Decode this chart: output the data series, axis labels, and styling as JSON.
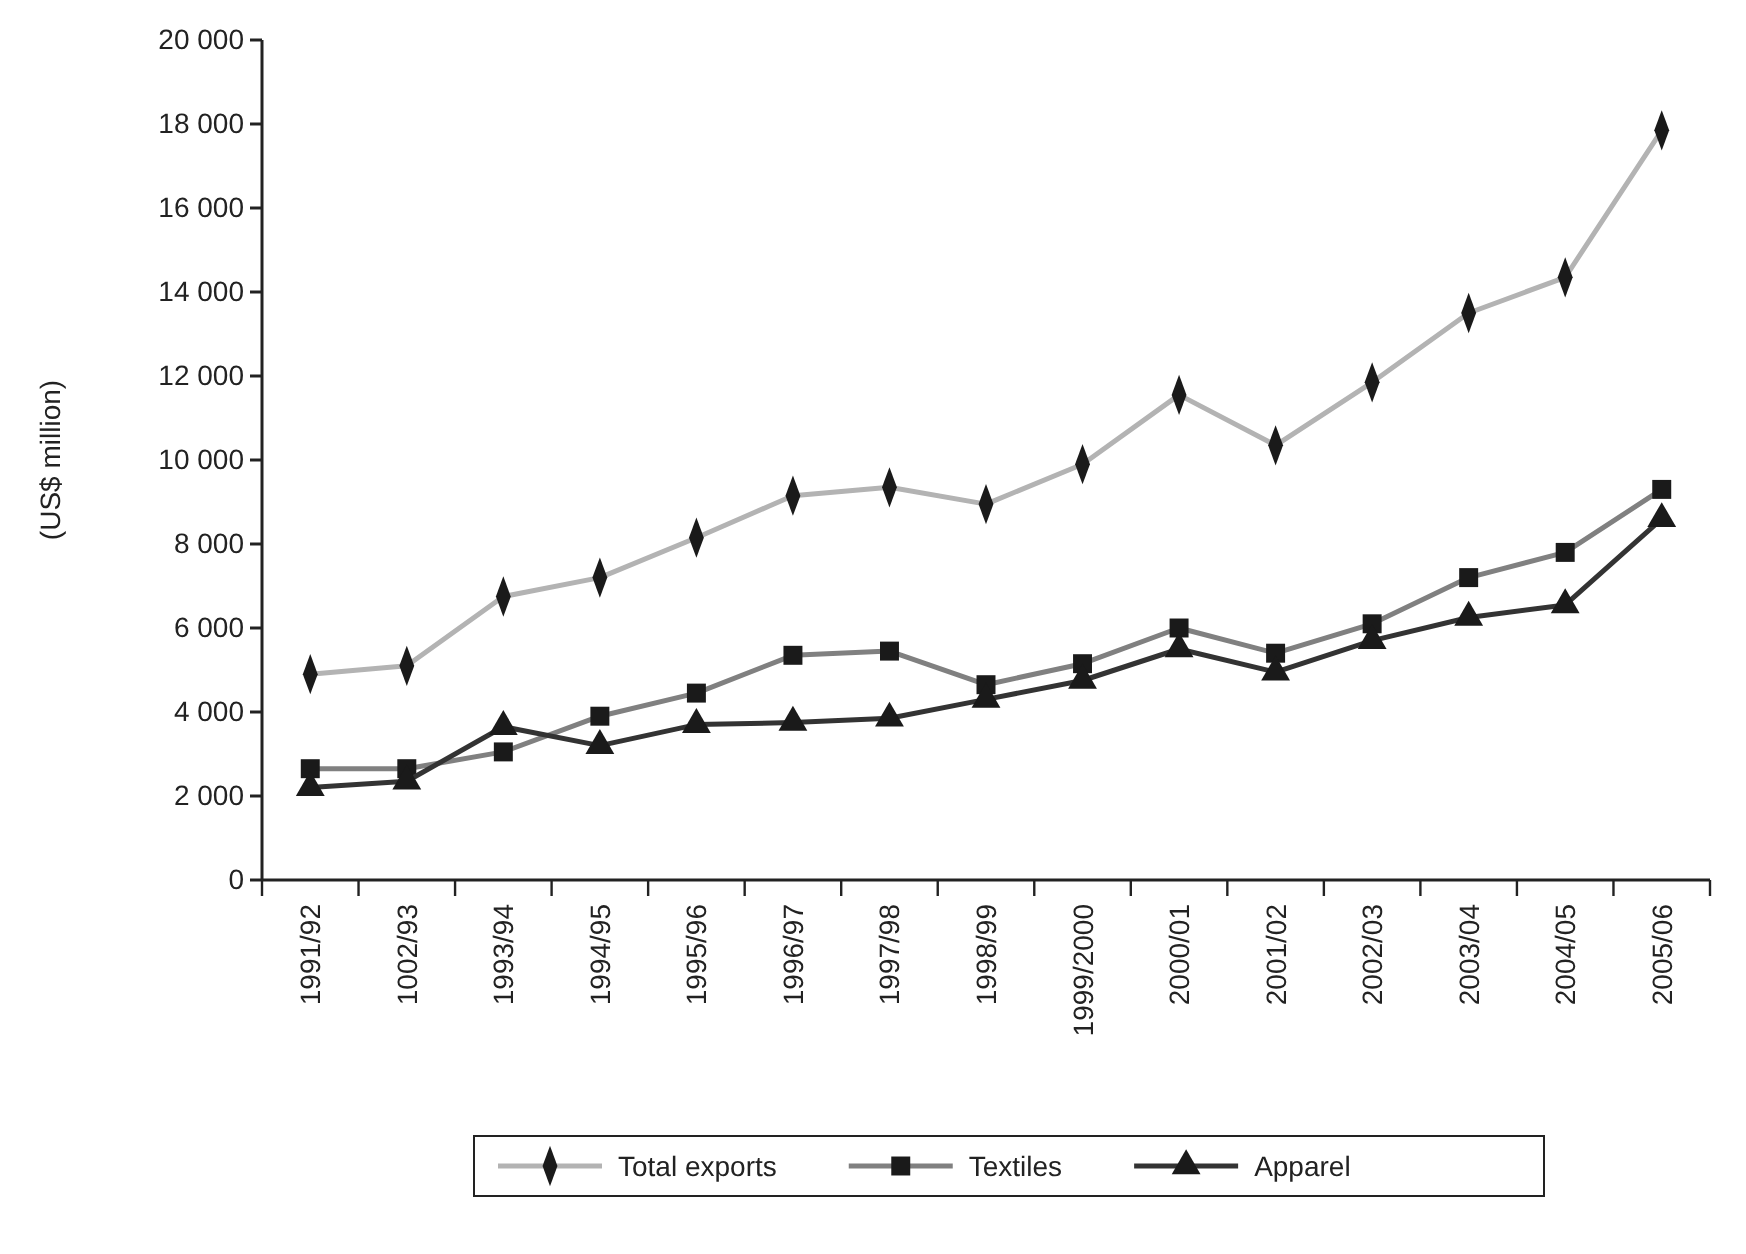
{
  "chart_data": {
    "type": "line",
    "ylabel": "(US$ million)",
    "categories": [
      "1991/92",
      "1002/93",
      "1993/94",
      "1994/95",
      "1995/96",
      "1996/97",
      "1997/98",
      "1998/99",
      "1999/2000",
      "2000/01",
      "2001/02",
      "2002/03",
      "2003/04",
      "2004/05",
      "2005/06"
    ],
    "series": [
      {
        "name": "Total exports",
        "color": "#b3b3b3",
        "marker": "diamond",
        "values": [
          4900,
          5100,
          6750,
          7200,
          8150,
          9150,
          9350,
          8950,
          9900,
          11550,
          10350,
          11850,
          13500,
          14350,
          17850
        ]
      },
      {
        "name": "Textiles",
        "color": "#808080",
        "marker": "square",
        "values": [
          2650,
          2650,
          3050,
          3900,
          4450,
          5350,
          5450,
          4650,
          5150,
          6000,
          5400,
          6100,
          7200,
          7800,
          9300
        ]
      },
      {
        "name": "Apparel",
        "color": "#333333",
        "marker": "triangle",
        "values": [
          2200,
          2350,
          3650,
          3200,
          3700,
          3750,
          3850,
          4300,
          4750,
          5500,
          4950,
          5700,
          6250,
          6550,
          8600
        ]
      }
    ],
    "ylim": [
      0,
      20000
    ],
    "yticks": [
      {
        "value": 0,
        "label": "0"
      },
      {
        "value": 2000,
        "label": "2 000"
      },
      {
        "value": 4000,
        "label": "4 000"
      },
      {
        "value": 6000,
        "label": "6 000"
      },
      {
        "value": 8000,
        "label": "8 000"
      },
      {
        "value": 10000,
        "label": "10 000"
      },
      {
        "value": 12000,
        "label": "12 000"
      },
      {
        "value": 14000,
        "label": "14 000"
      },
      {
        "value": 16000,
        "label": "16 000"
      },
      {
        "value": 18000,
        "label": "18 000"
      },
      {
        "value": 20000,
        "label": "20 000"
      }
    ],
    "grid": false,
    "legend": "bottom",
    "line_style": "solid"
  }
}
